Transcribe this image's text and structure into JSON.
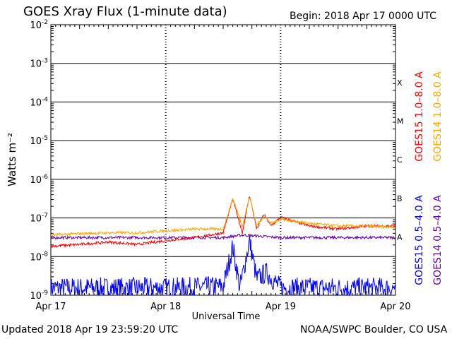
{
  "header": {
    "title": "GOES Xray Flux (1-minute data)",
    "begin": "Begin:  2018 Apr 17 0000 UTC"
  },
  "footer": {
    "updated": "Updated 2018 Apr 19 23:59:20 UTC",
    "credit": "NOAA/SWPC Boulder, CO USA"
  },
  "chart_data": {
    "type": "line",
    "ylabel": "Watts m⁻²",
    "xlabel": "Universal Time",
    "yscale": "log",
    "ylim": [
      1e-09,
      0.01
    ],
    "xlim": [
      "2018-04-17",
      "2018-04-20"
    ],
    "x_ticks": [
      "Apr 17",
      "Apr 18",
      "Apr 19",
      "Apr 20"
    ],
    "y_ticks": [
      {
        "base": "10",
        "exp": "-9",
        "value": 1e-09
      },
      {
        "base": "10",
        "exp": "-8",
        "value": 1e-08
      },
      {
        "base": "10",
        "exp": "-7",
        "value": 1e-07
      },
      {
        "base": "10",
        "exp": "-6",
        "value": 1e-06
      },
      {
        "base": "10",
        "exp": "-5",
        "value": 1e-05
      },
      {
        "base": "10",
        "exp": "-4",
        "value": 0.0001
      },
      {
        "base": "10",
        "exp": "-3",
        "value": 0.001
      },
      {
        "base": "10",
        "exp": "-2",
        "value": 0.01
      }
    ],
    "flare_classes": [
      {
        "label": "X",
        "value": 0.00032
      },
      {
        "label": "M",
        "value": 3.2e-05
      },
      {
        "label": "C",
        "value": 3.2e-06
      },
      {
        "label": "B",
        "value": 3.2e-07
      },
      {
        "label": "A",
        "value": 3.2e-08
      }
    ],
    "grid": true,
    "series": [
      {
        "name": "GOES15 1.0–8.0 A",
        "color": "#ff0000",
        "x": [
          "2018-04-17 00:00",
          "2018-04-17 06:00",
          "2018-04-17 12:00",
          "2018-04-17 18:00",
          "2018-04-18 00:00",
          "2018-04-18 06:00",
          "2018-04-18 12:00",
          "2018-04-18 14:00",
          "2018-04-18 16:00",
          "2018-04-18 17:30",
          "2018-04-18 19:00",
          "2018-04-18 20:30",
          "2018-04-18 22:00",
          "2018-04-19 00:00",
          "2018-04-19 06:00",
          "2018-04-19 12:00",
          "2018-04-19 18:00",
          "2018-04-20 00:00"
        ],
        "y": [
          1.8e-08,
          2e-08,
          2.3e-08,
          2e-08,
          2.5e-08,
          3e-08,
          4e-08,
          3e-07,
          4e-08,
          3.8e-07,
          5e-08,
          1.2e-07,
          6e-08,
          1e-07,
          6e-08,
          5e-08,
          6e-08,
          6e-08
        ]
      },
      {
        "name": "GOES14 1.0–8.0 A",
        "color": "#ffa500",
        "x": [
          "2018-04-17 00:00",
          "2018-04-17 06:00",
          "2018-04-17 12:00",
          "2018-04-17 18:00",
          "2018-04-18 00:00",
          "2018-04-18 06:00",
          "2018-04-18 12:00",
          "2018-04-18 14:00",
          "2018-04-18 16:00",
          "2018-04-18 17:30",
          "2018-04-18 19:00",
          "2018-04-18 20:30",
          "2018-04-18 22:00",
          "2018-04-19 00:00",
          "2018-04-19 06:00",
          "2018-04-19 12:00",
          "2018-04-19 18:00",
          "2018-04-20 00:00"
        ],
        "y": [
          3.5e-08,
          3.8e-08,
          4e-08,
          4e-08,
          4.5e-08,
          5e-08,
          5e-08,
          3e-07,
          6e-08,
          3.5e-07,
          6e-08,
          1.1e-07,
          7e-08,
          9e-08,
          7e-08,
          6e-08,
          6e-08,
          5.5e-08
        ]
      },
      {
        "name": "GOES15 0.5–4.0 A",
        "color": "#0000ff",
        "x": [
          "2018-04-17 00:00",
          "2018-04-17 12:00",
          "2018-04-18 00:00",
          "2018-04-18 12:00",
          "2018-04-18 14:00",
          "2018-04-18 15:30",
          "2018-04-18 17:30",
          "2018-04-18 19:00",
          "2018-04-18 21:00",
          "2018-04-19 00:00",
          "2018-04-19 12:00",
          "2018-04-20 00:00"
        ],
        "y": [
          1.2e-09,
          1.2e-09,
          1.2e-09,
          1.3e-09,
          1.4e-08,
          1.2e-09,
          2e-08,
          2e-09,
          3e-09,
          1.2e-09,
          1.2e-09,
          1.2e-09
        ]
      },
      {
        "name": "GOES14 0.5–4.0 A",
        "color": "#6600aa",
        "x": [
          "2018-04-17 00:00",
          "2018-04-17 12:00",
          "2018-04-18 00:00",
          "2018-04-18 12:00",
          "2018-04-18 16:00",
          "2018-04-19 00:00",
          "2018-04-19 12:00",
          "2018-04-20 00:00"
        ],
        "y": [
          3e-08,
          3e-08,
          3e-08,
          3e-08,
          3.5e-08,
          3e-08,
          3e-08,
          3e-08
        ]
      }
    ]
  }
}
